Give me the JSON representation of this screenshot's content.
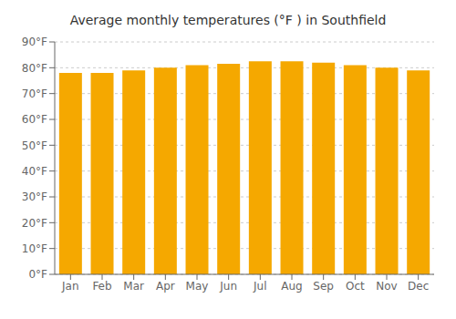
{
  "chart_data": {
    "type": "bar",
    "title": "Average monthly temperatures (°F ) in Southfield",
    "categories": [
      "Jan",
      "Feb",
      "Mar",
      "Apr",
      "May",
      "Jun",
      "Jul",
      "Aug",
      "Sep",
      "Oct",
      "Nov",
      "Dec"
    ],
    "values": [
      78,
      78,
      79,
      80,
      81,
      81.5,
      82.5,
      82.5,
      82,
      81,
      80,
      79
    ],
    "color": "#F5A800",
    "ylim": [
      0,
      90
    ],
    "yticks": [
      {
        "value": 0,
        "label": "0°F"
      },
      {
        "value": 10,
        "label": "10°F"
      },
      {
        "value": 20,
        "label": "20°F"
      },
      {
        "value": 30,
        "label": "30°F"
      },
      {
        "value": 40,
        "label": "40°F"
      },
      {
        "value": 50,
        "label": "50°F"
      },
      {
        "value": 60,
        "label": "60°F"
      },
      {
        "value": 70,
        "label": "70°F"
      },
      {
        "value": 80,
        "label": "80°F"
      },
      {
        "value": 90,
        "label": "90°F"
      }
    ],
    "grid": true
  }
}
